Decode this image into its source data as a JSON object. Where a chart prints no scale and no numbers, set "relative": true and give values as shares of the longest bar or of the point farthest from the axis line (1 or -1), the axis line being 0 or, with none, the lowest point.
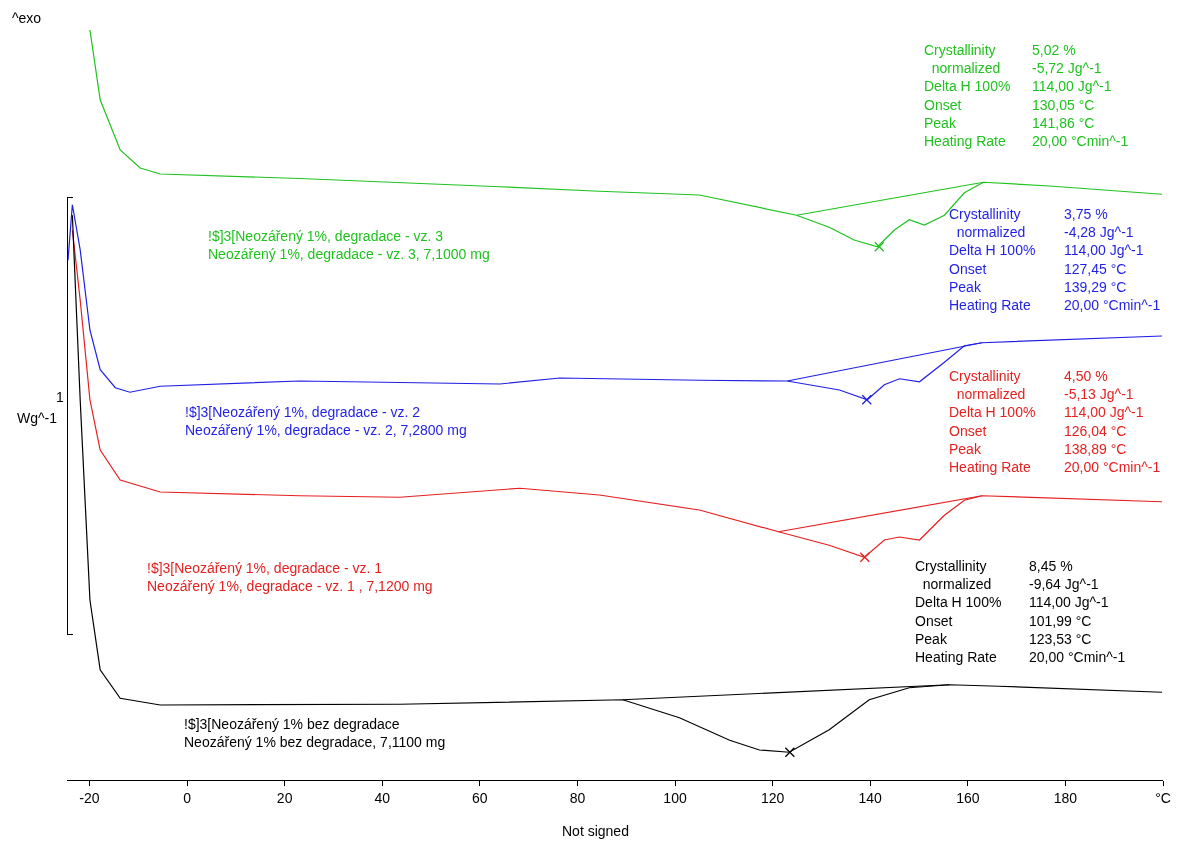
{
  "chart_data": {
    "type": "line",
    "relative": true,
    "grid": false,
    "legend": false,
    "tick_labels": "x",
    "xlim": [
      -24.6,
      200
    ],
    "xticks": [
      -20,
      0,
      20,
      40,
      60,
      80,
      100,
      120,
      140,
      160,
      180,
      {
        "value": 200,
        "label": "°C"
      }
    ],
    "annotations": [
      "^exo",
      "1",
      "Wg^-1",
      "Not signed",
      "Crystallinity\n  normalized\nDelta H 100%\nOnset\nPeak\nHeating Rate",
      "5,02 %\n-5,72 Jg^-1\n114,00 Jg^-1\n130,05 °C\n141,86 °C\n20,00 °Cmin^-1",
      "Crystallinity\n  normalized\nDelta H 100%\nOnset\nPeak\nHeating Rate",
      "3,75 %\n-4,28 Jg^-1\n114,00 Jg^-1\n127,45 °C\n139,29 °C\n20,00 °Cmin^-1",
      "Crystallinity\n  normalized\nDelta H 100%\nOnset\nPeak\nHeating Rate",
      "4,50 %\n-5,13 Jg^-1\n114,00 Jg^-1\n126,04 °C\n138,89 °C\n20,00 °Cmin^-1",
      "Crystallinity\n  normalized\nDelta H 100%\nOnset\nPeak\nHeating Rate",
      "8,45 %\n-9,64 Jg^-1\n114,00 Jg^-1\n101,99 °C\n123,53 °C\n20,00 °Cmin^-1"
    ],
    "series": [
      {
        "name": "!$]3[Neozářený 1%, degradace - vz. 3\nNeozářený 1%, degradace - vz. 3, 7,1000 mg",
        "color": "#1fc21f",
        "x": [
          -19.9,
          -17.8,
          -13.7,
          -9.6,
          -5.5,
          23.1,
          64.1,
          84.5,
          105.0,
          124.9,
          131.6,
          136.7,
          141.5,
          144.9,
          148.0,
          151.1,
          155.2,
          159.3,
          163.2,
          176.7,
          199.8
        ],
        "values": [
          1.0,
          0.907,
          0.84,
          0.816,
          0.808,
          0.802,
          0.791,
          0.785,
          0.78,
          0.753,
          0.737,
          0.72,
          0.711,
          0.733,
          0.747,
          0.74,
          0.753,
          0.783,
          0.797,
          0.792,
          0.781
        ]
      },
      {
        "name": "!$]3[Neozářený 1%, degradace - vz. 2\nNeozářený 1%, degradace - vz. 2, 7,2800 mg",
        "color": "#1f1fe6",
        "x": [
          -24.4,
          -23.5,
          -21.9,
          -19.9,
          -17.8,
          -14.7,
          -11.7,
          -5.5,
          23.1,
          64.1,
          76.4,
          105.0,
          123.0,
          133.7,
          139.4,
          142.9,
          146.0,
          150.1,
          155.2,
          159.3,
          162.9,
          199.8
        ],
        "values": [
          0.693,
          0.767,
          0.707,
          0.6,
          0.547,
          0.523,
          0.517,
          0.525,
          0.532,
          0.528,
          0.536,
          0.533,
          0.532,
          0.52,
          0.507,
          0.527,
          0.535,
          0.531,
          0.557,
          0.579,
          0.583,
          0.592
        ]
      },
      {
        "name": "!$]3[Neozářený 1%, degradace - vz. 1\nNeozářený 1%, degradace - vz. 1 , 7,1200 mg",
        "color": "#e61f1f",
        "x": [
          -23.5,
          -21.9,
          -19.9,
          -17.8,
          -13.7,
          -5.5,
          23.1,
          43.6,
          68.2,
          84.5,
          105.0,
          121.2,
          131.6,
          138.8,
          142.9,
          146.0,
          150.1,
          155.2,
          159.3,
          162.9,
          199.8
        ],
        "values": [
          0.733,
          0.64,
          0.507,
          0.44,
          0.4,
          0.384,
          0.379,
          0.377,
          0.389,
          0.38,
          0.36,
          0.331,
          0.313,
          0.297,
          0.32,
          0.324,
          0.32,
          0.353,
          0.373,
          0.379,
          0.371
        ]
      },
      {
        "name": "!$]3[Neozářený 1% bez degradace\nNeozářený 1% bez degradace, 7,1100 mg",
        "color": "#000000",
        "x": [
          -23.5,
          -21.9,
          -19.9,
          -17.8,
          -13.7,
          -5.5,
          43.6,
          89.3,
          100.9,
          111.2,
          117.3,
          123.4,
          131.6,
          139.8,
          148.0,
          156.2,
          166.4,
          199.8
        ],
        "values": [
          0.753,
          0.507,
          0.24,
          0.147,
          0.109,
          0.1,
          0.101,
          0.107,
          0.083,
          0.053,
          0.04,
          0.037,
          0.067,
          0.107,
          0.123,
          0.127,
          0.125,
          0.117
        ]
      },
      {
        "color": "#1fc21f",
        "x": [
          124.9,
          163.2
        ],
        "values": [
          0.753,
          0.797
        ]
      },
      {
        "color": "#1f1fe6",
        "x": [
          123.0,
          162.9
        ],
        "values": [
          0.532,
          0.583
        ]
      },
      {
        "color": "#e61f1f",
        "x": [
          121.2,
          162.9
        ],
        "values": [
          0.331,
          0.379
        ]
      },
      {
        "color": "#000000",
        "x": [
          89.3,
          156.2
        ],
        "values": [
          0.107,
          0.127
        ]
      },
      {
        "type": "scatter",
        "marker": "cross",
        "color": "#1fc21f",
        "x": [
          141.86
        ],
        "values": [
          0.711
        ]
      },
      {
        "type": "scatter",
        "marker": "cross",
        "color": "#1f1fe6",
        "x": [
          139.29
        ],
        "values": [
          0.507
        ]
      },
      {
        "type": "scatter",
        "marker": "cross",
        "color": "#e61f1f",
        "x": [
          138.89
        ],
        "values": [
          0.297
        ]
      },
      {
        "type": "scatter",
        "marker": "cross",
        "color": "#000000",
        "x": [
          123.53
        ],
        "values": [
          0.037
        ]
      }
    ]
  }
}
